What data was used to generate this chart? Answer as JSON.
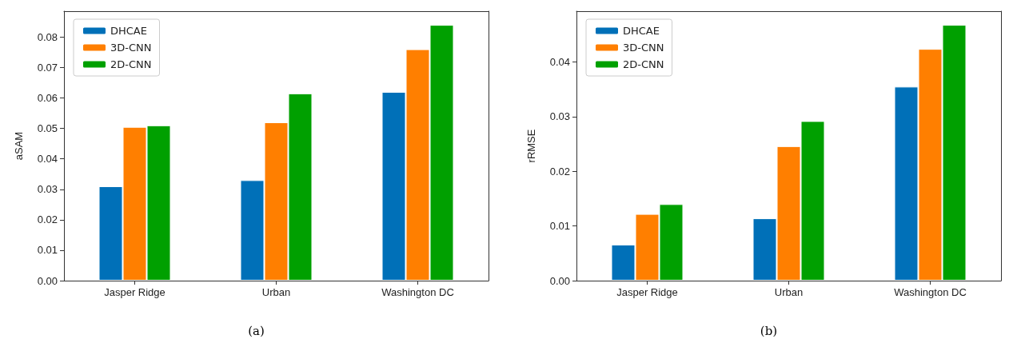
{
  "chart_data": [
    {
      "type": "bar",
      "ylabel": "aSAM",
      "categories": [
        "Jasper Ridge",
        "Urban",
        "Washington DC"
      ],
      "series": [
        {
          "name": "DHCAE",
          "color": "#0070b8",
          "values": [
            0.031,
            0.033,
            0.062
          ]
        },
        {
          "name": "3D-CNN",
          "color": "#ff7f00",
          "values": [
            0.0505,
            0.052,
            0.076
          ]
        },
        {
          "name": "2D-CNN",
          "color": "#00a000",
          "values": [
            0.051,
            0.0615,
            0.084
          ]
        }
      ],
      "ylim": [
        0,
        0.0885
      ],
      "yticks": [
        {
          "value": 0,
          "label": "0.00"
        },
        {
          "value": 0.01,
          "label": "0.01"
        },
        {
          "value": 0.02,
          "label": "0.02"
        },
        {
          "value": 0.03,
          "label": "0.03"
        },
        {
          "value": 0.04,
          "label": "0.04"
        },
        {
          "value": 0.05,
          "label": "0.05"
        },
        {
          "value": 0.06,
          "label": "0.06"
        },
        {
          "value": 0.07,
          "label": "0.07"
        },
        {
          "value": 0.08,
          "label": "0.08"
        }
      ],
      "grid": false,
      "legend": "top left",
      "annotations": [
        "(a)"
      ]
    },
    {
      "type": "bar",
      "ylabel": "rRMSE",
      "categories": [
        "Jasper Ridge",
        "Urban",
        "Washington DC"
      ],
      "series": [
        {
          "name": "DHCAE",
          "color": "#0070b8",
          "values": [
            0.0066,
            0.0114,
            0.0355
          ]
        },
        {
          "name": "3D-CNN",
          "color": "#ff7f00",
          "values": [
            0.0122,
            0.0246,
            0.0424
          ]
        },
        {
          "name": "2D-CNN",
          "color": "#00a000",
          "values": [
            0.014,
            0.0292,
            0.0468
          ]
        }
      ],
      "ylim": [
        0,
        0.0493
      ],
      "yticks": [
        {
          "value": 0,
          "label": "0.00"
        },
        {
          "value": 0.01,
          "label": "0.01"
        },
        {
          "value": 0.02,
          "label": "0.02"
        },
        {
          "value": 0.03,
          "label": "0.03"
        },
        {
          "value": 0.04,
          "label": "0.04"
        }
      ],
      "grid": false,
      "legend": "top left",
      "annotations": [
        "(b)"
      ]
    }
  ]
}
